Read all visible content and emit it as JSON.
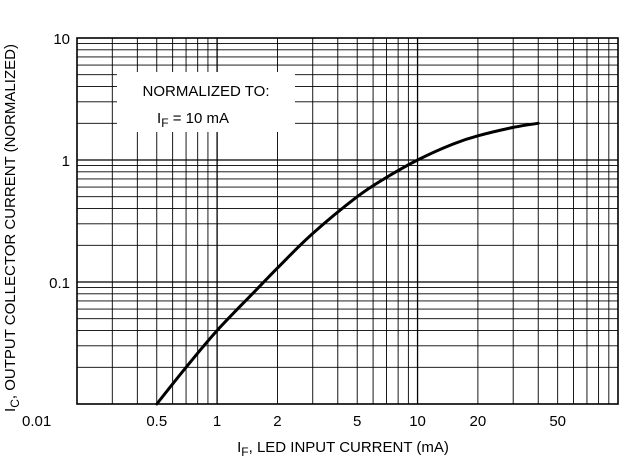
{
  "chart_data": {
    "type": "line",
    "title": "",
    "xlabel": {
      "main": "I",
      "sub": "F",
      "rest": ", LED INPUT CURRENT (mA)"
    },
    "ylabel": {
      "main": "I",
      "sub": "C",
      "rest": ", OUTPUT COLLECTOR CURRENT (NORMALIZED)"
    },
    "x_scale": "log",
    "y_scale": "log",
    "xlim": [
      0.2,
      100
    ],
    "ylim": [
      0.01,
      10
    ],
    "grid": true,
    "xticks": [
      {
        "v": 0.5,
        "label": "0.5"
      },
      {
        "v": 1,
        "label": "1"
      },
      {
        "v": 2,
        "label": "2"
      },
      {
        "v": 5,
        "label": "5"
      },
      {
        "v": 10,
        "label": "10"
      },
      {
        "v": 20,
        "label": "20"
      },
      {
        "v": 50,
        "label": "50"
      }
    ],
    "yticks": [
      {
        "v": 0.01,
        "label": "0.01"
      },
      {
        "v": 0.1,
        "label": "0.1"
      },
      {
        "v": 1,
        "label": "1"
      },
      {
        "v": 10,
        "label": "10"
      }
    ],
    "annotation": {
      "line1": "NORMALIZED TO:",
      "line2_main": "I",
      "line2_sub": "F",
      "line2_rest": " = 10 mA"
    },
    "series": [
      {
        "color": "#000000",
        "x": [
          0.5,
          0.7,
          1,
          1.5,
          2,
          3,
          5,
          7,
          10,
          15,
          20,
          30,
          40
        ],
        "y": [
          0.01,
          0.02,
          0.04,
          0.08,
          0.13,
          0.25,
          0.5,
          0.72,
          1.0,
          1.35,
          1.58,
          1.85,
          2.0
        ]
      }
    ]
  }
}
